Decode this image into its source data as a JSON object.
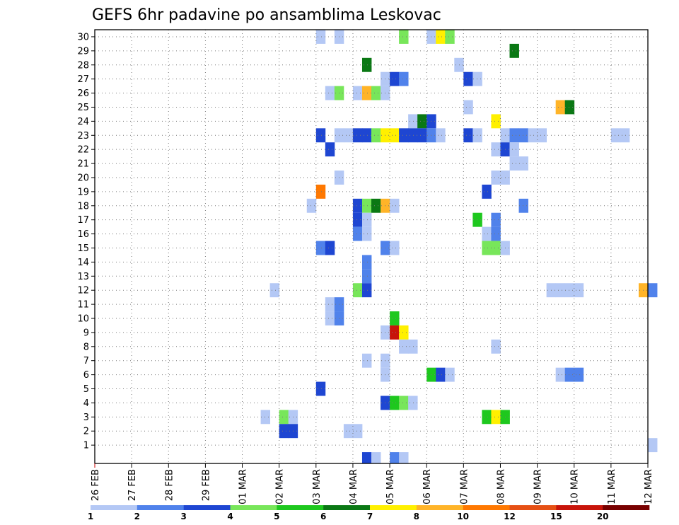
{
  "chart_data": {
    "type": "heatmap",
    "title": "GEFS 6hr padavine po ansamblima Leskovac",
    "xlabel": "",
    "ylabel": "",
    "y_ticks": [
      1,
      2,
      3,
      4,
      5,
      6,
      7,
      8,
      9,
      10,
      11,
      12,
      13,
      14,
      15,
      16,
      17,
      18,
      19,
      20,
      21,
      22,
      23,
      24,
      25,
      26,
      27,
      28,
      29,
      30
    ],
    "ylim": [
      0,
      30
    ],
    "x_tick_labels": [
      "26 FEB",
      "27 FEB",
      "28 FEB",
      "29 FEB",
      "01 MAR",
      "02 MAR",
      "03 MAR",
      "04 MAR",
      "05 MAR",
      "06 MAR",
      "07 MAR",
      "08 MAR",
      "09 MAR",
      "10 MAR",
      "11 MAR",
      "12 MAR"
    ],
    "x_range_steps": [
      0,
      60
    ],
    "x_step_hours": 6,
    "grid": true,
    "legend": {
      "placement": "bottom",
      "thresholds": [
        "1",
        "2",
        "3",
        "4",
        "5",
        "6",
        "7",
        "8",
        "10",
        "12",
        "15",
        "20"
      ],
      "colors": [
        "#b4c8f5",
        "#5082eb",
        "#1e46d2",
        "#78e65a",
        "#1ec81e",
        "#0a7814",
        "#fff000",
        "#ffb428",
        "#ff7800",
        "#e65014",
        "#c8140a",
        "#780000"
      ]
    },
    "cells": [
      {
        "member": 30,
        "t": 24,
        "c": 0
      },
      {
        "member": 30,
        "t": 26,
        "c": 0
      },
      {
        "member": 30,
        "t": 33,
        "c": 3
      },
      {
        "member": 30,
        "t": 36,
        "c": 0
      },
      {
        "member": 30,
        "t": 37,
        "c": 6
      },
      {
        "member": 30,
        "t": 38,
        "c": 3
      },
      {
        "member": 29,
        "t": 45,
        "c": 5
      },
      {
        "member": 28,
        "t": 29,
        "c": 5
      },
      {
        "member": 28,
        "t": 39,
        "c": 0
      },
      {
        "member": 27,
        "t": 31,
        "c": 0
      },
      {
        "member": 27,
        "t": 32,
        "c": 2
      },
      {
        "member": 27,
        "t": 33,
        "c": 1
      },
      {
        "member": 27,
        "t": 40,
        "c": 2
      },
      {
        "member": 27,
        "t": 41,
        "c": 0
      },
      {
        "member": 26,
        "t": 25,
        "c": 0
      },
      {
        "member": 26,
        "t": 26,
        "c": 3
      },
      {
        "member": 26,
        "t": 28,
        "c": 0
      },
      {
        "member": 26,
        "t": 29,
        "c": 7
      },
      {
        "member": 26,
        "t": 30,
        "c": 3
      },
      {
        "member": 26,
        "t": 31,
        "c": 0
      },
      {
        "member": 25,
        "t": 40,
        "c": 0
      },
      {
        "member": 25,
        "t": 50,
        "c": 7
      },
      {
        "member": 25,
        "t": 51,
        "c": 5
      },
      {
        "member": 24,
        "t": 34,
        "c": 0
      },
      {
        "member": 24,
        "t": 35,
        "c": 5
      },
      {
        "member": 24,
        "t": 36,
        "c": 2
      },
      {
        "member": 24,
        "t": 43,
        "c": 6
      },
      {
        "member": 23,
        "t": 24,
        "c": 2
      },
      {
        "member": 23,
        "t": 26,
        "c": 0
      },
      {
        "member": 23,
        "t": 27,
        "c": 0
      },
      {
        "member": 23,
        "t": 28,
        "c": 2
      },
      {
        "member": 23,
        "t": 29,
        "c": 2
      },
      {
        "member": 23,
        "t": 30,
        "c": 3
      },
      {
        "member": 23,
        "t": 31,
        "c": 6
      },
      {
        "member": 23,
        "t": 32,
        "c": 6
      },
      {
        "member": 23,
        "t": 33,
        "c": 2
      },
      {
        "member": 23,
        "t": 34,
        "c": 2
      },
      {
        "member": 23,
        "t": 35,
        "c": 2
      },
      {
        "member": 23,
        "t": 36,
        "c": 1
      },
      {
        "member": 23,
        "t": 37,
        "c": 0
      },
      {
        "member": 23,
        "t": 40,
        "c": 2
      },
      {
        "member": 23,
        "t": 41,
        "c": 0
      },
      {
        "member": 23,
        "t": 44,
        "c": 0
      },
      {
        "member": 23,
        "t": 45,
        "c": 1
      },
      {
        "member": 23,
        "t": 46,
        "c": 1
      },
      {
        "member": 23,
        "t": 47,
        "c": 0
      },
      {
        "member": 23,
        "t": 48,
        "c": 0
      },
      {
        "member": 23,
        "t": 56,
        "c": 0
      },
      {
        "member": 23,
        "t": 57,
        "c": 0
      },
      {
        "member": 22,
        "t": 25,
        "c": 2
      },
      {
        "member": 22,
        "t": 43,
        "c": 0
      },
      {
        "member": 22,
        "t": 44,
        "c": 2
      },
      {
        "member": 22,
        "t": 45,
        "c": 0
      },
      {
        "member": 21,
        "t": 45,
        "c": 0
      },
      {
        "member": 21,
        "t": 46,
        "c": 0
      },
      {
        "member": 20,
        "t": 26,
        "c": 0
      },
      {
        "member": 20,
        "t": 43,
        "c": 0
      },
      {
        "member": 20,
        "t": 44,
        "c": 0
      },
      {
        "member": 19,
        "t": 24,
        "c": 8
      },
      {
        "member": 19,
        "t": 42,
        "c": 2
      },
      {
        "member": 18,
        "t": 23,
        "c": 0
      },
      {
        "member": 18,
        "t": 28,
        "c": 2
      },
      {
        "member": 18,
        "t": 29,
        "c": 3
      },
      {
        "member": 18,
        "t": 30,
        "c": 5
      },
      {
        "member": 18,
        "t": 31,
        "c": 7
      },
      {
        "member": 18,
        "t": 32,
        "c": 0
      },
      {
        "member": 18,
        "t": 46,
        "c": 1
      },
      {
        "member": 17,
        "t": 28,
        "c": 2
      },
      {
        "member": 17,
        "t": 29,
        "c": 0
      },
      {
        "member": 17,
        "t": 41,
        "c": 4
      },
      {
        "member": 17,
        "t": 43,
        "c": 1
      },
      {
        "member": 16,
        "t": 28,
        "c": 1
      },
      {
        "member": 16,
        "t": 29,
        "c": 0
      },
      {
        "member": 16,
        "t": 42,
        "c": 0
      },
      {
        "member": 16,
        "t": 43,
        "c": 1
      },
      {
        "member": 15,
        "t": 24,
        "c": 1
      },
      {
        "member": 15,
        "t": 25,
        "c": 2
      },
      {
        "member": 15,
        "t": 31,
        "c": 1
      },
      {
        "member": 15,
        "t": 32,
        "c": 0
      },
      {
        "member": 15,
        "t": 42,
        "c": 3
      },
      {
        "member": 15,
        "t": 43,
        "c": 3
      },
      {
        "member": 15,
        "t": 44,
        "c": 0
      },
      {
        "member": 14,
        "t": 29,
        "c": 1
      },
      {
        "member": 13,
        "t": 29,
        "c": 1
      },
      {
        "member": 12,
        "t": 19,
        "c": 0
      },
      {
        "member": 12,
        "t": 28,
        "c": 3
      },
      {
        "member": 12,
        "t": 29,
        "c": 2
      },
      {
        "member": 12,
        "t": 49,
        "c": 0
      },
      {
        "member": 12,
        "t": 50,
        "c": 0
      },
      {
        "member": 12,
        "t": 51,
        "c": 0
      },
      {
        "member": 12,
        "t": 52,
        "c": 0
      },
      {
        "member": 12,
        "t": 59,
        "c": 7
      },
      {
        "member": 12,
        "t": 60,
        "c": 1
      },
      {
        "member": 11,
        "t": 25,
        "c": 0
      },
      {
        "member": 11,
        "t": 26,
        "c": 1
      },
      {
        "member": 10,
        "t": 25,
        "c": 0
      },
      {
        "member": 10,
        "t": 26,
        "c": 1
      },
      {
        "member": 10,
        "t": 32,
        "c": 4
      },
      {
        "member": 9,
        "t": 31,
        "c": 0
      },
      {
        "member": 9,
        "t": 32,
        "c": 10
      },
      {
        "member": 9,
        "t": 33,
        "c": 6
      },
      {
        "member": 8,
        "t": 33,
        "c": 0
      },
      {
        "member": 8,
        "t": 34,
        "c": 0
      },
      {
        "member": 8,
        "t": 43,
        "c": 0
      },
      {
        "member": 7,
        "t": 29,
        "c": 0
      },
      {
        "member": 7,
        "t": 31,
        "c": 0
      },
      {
        "member": 6,
        "t": 31,
        "c": 0
      },
      {
        "member": 6,
        "t": 36,
        "c": 4
      },
      {
        "member": 6,
        "t": 37,
        "c": 2
      },
      {
        "member": 6,
        "t": 38,
        "c": 0
      },
      {
        "member": 6,
        "t": 50,
        "c": 0
      },
      {
        "member": 6,
        "t": 51,
        "c": 1
      },
      {
        "member": 6,
        "t": 52,
        "c": 1
      },
      {
        "member": 5,
        "t": 24,
        "c": 2
      },
      {
        "member": 4,
        "t": 31,
        "c": 2
      },
      {
        "member": 4,
        "t": 32,
        "c": 4
      },
      {
        "member": 4,
        "t": 33,
        "c": 3
      },
      {
        "member": 4,
        "t": 34,
        "c": 0
      },
      {
        "member": 3,
        "t": 18,
        "c": 0
      },
      {
        "member": 3,
        "t": 20,
        "c": 3
      },
      {
        "member": 3,
        "t": 21,
        "c": 0
      },
      {
        "member": 3,
        "t": 42,
        "c": 4
      },
      {
        "member": 3,
        "t": 43,
        "c": 6
      },
      {
        "member": 3,
        "t": 44,
        "c": 4
      },
      {
        "member": 2,
        "t": 20,
        "c": 2
      },
      {
        "member": 2,
        "t": 21,
        "c": 2
      },
      {
        "member": 2,
        "t": 27,
        "c": 0
      },
      {
        "member": 2,
        "t": 28,
        "c": 0
      },
      {
        "member": 1,
        "t": 60,
        "c": 0
      },
      {
        "member": 0,
        "t": 29,
        "c": 2
      },
      {
        "member": 0,
        "t": 30,
        "c": 0
      },
      {
        "member": 0,
        "t": 32,
        "c": 1
      },
      {
        "member": 0,
        "t": 33,
        "c": 0
      }
    ]
  }
}
